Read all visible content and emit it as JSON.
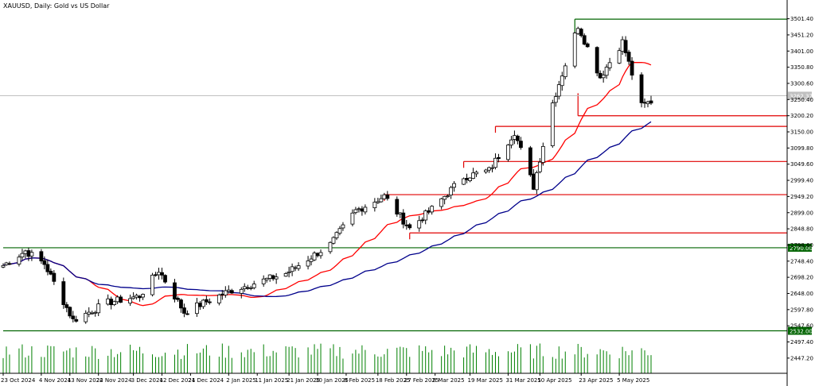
{
  "chart_data": {
    "type": "candlestick",
    "title": "XAUUSD, Daily:  Gold vs US Dollar",
    "xlabel": "",
    "ylabel": "",
    "ylim": [
      2400,
      3530
    ],
    "grid": false,
    "price_ticks": [
      "3501.40",
      "3451.20",
      "3401.00",
      "3350.80",
      "3300.60",
      "3250.40",
      "3200.20",
      "3150.00",
      "3099.80",
      "3049.60",
      "2999.40",
      "2949.20",
      "2899.00",
      "2848.80",
      "2798.60",
      "2748.40",
      "2698.20",
      "2648.00",
      "2597.80",
      "2547.60",
      "2497.40",
      "2447.20"
    ],
    "date_ticks": [
      "23 Oct 2024",
      "4 Nov 2024",
      "13 Nov 2024",
      "22 Nov 2024",
      "3 Dec 2024",
      "12 Dec 2024",
      "21 Dec 2024",
      "2 Jan 2025",
      "11 Jan 2025",
      "21 Jan 2025",
      "30 Jan 2025",
      "8 Feb 2025",
      "18 Feb 2025",
      "27 Feb 2025",
      "8 Mar 2025",
      "19 Mar 2025",
      "31 Mar 2025",
      "10 Apr 2025",
      "23 Apr 2025",
      "5 May 2025"
    ],
    "current_price_label": "3262.37",
    "levels": [
      {
        "label": "3500.00",
        "color": "#006400"
      },
      {
        "label": "3200.00",
        "color": "#e00000"
      },
      {
        "label": "3167.00",
        "color": "#e00000"
      },
      {
        "label": "3058.00",
        "color": "#e00000"
      },
      {
        "label": "2955.00",
        "color": "#e00000"
      },
      {
        "label": "2836.00",
        "color": "#e00000"
      },
      {
        "label": "2790.00",
        "color": "#006400",
        "badge": true
      },
      {
        "label": "2532.00",
        "color": "#006400",
        "badge": true
      }
    ],
    "series": [
      {
        "name": "",
        "kind": "ohlc",
        "color": "#000000"
      },
      {
        "name": "",
        "kind": "moving-average",
        "color": "#ff0000"
      },
      {
        "name": "",
        "kind": "moving-average",
        "color": "#00008b"
      },
      {
        "name": "",
        "kind": "volume",
        "color": "#008000"
      }
    ],
    "control_anchor": [
      {
        "date": "2024-10-23",
        "price": 2735
      },
      {
        "date": "2024-10-30",
        "price": 2780
      },
      {
        "date": "2024-11-05",
        "price": 2740
      },
      {
        "date": "2024-11-14",
        "price": 2565
      },
      {
        "date": "2024-11-25",
        "price": 2620
      },
      {
        "date": "2024-12-05",
        "price": 2640
      },
      {
        "date": "2024-12-11",
        "price": 2720
      },
      {
        "date": "2024-12-19",
        "price": 2590
      },
      {
        "date": "2025-01-02",
        "price": 2655
      },
      {
        "date": "2025-01-20",
        "price": 2710
      },
      {
        "date": "2025-02-03",
        "price": 2800
      },
      {
        "date": "2025-02-11",
        "price": 2905
      },
      {
        "date": "2025-02-20",
        "price": 2950
      },
      {
        "date": "2025-02-28",
        "price": 2850
      },
      {
        "date": "2025-03-07",
        "price": 2910
      },
      {
        "date": "2025-03-17",
        "price": 3010
      },
      {
        "date": "2025-03-25",
        "price": 3030
      },
      {
        "date": "2025-04-02",
        "price": 3150
      },
      {
        "date": "2025-04-08",
        "price": 2980
      },
      {
        "date": "2025-04-14",
        "price": 3240
      },
      {
        "date": "2025-04-22",
        "price": 3480
      },
      {
        "date": "2025-04-29",
        "price": 3320
      },
      {
        "date": "2025-05-06",
        "price": 3430
      },
      {
        "date": "2025-05-12",
        "price": 3230
      },
      {
        "date": "2025-05-15",
        "price": 3245
      }
    ]
  }
}
